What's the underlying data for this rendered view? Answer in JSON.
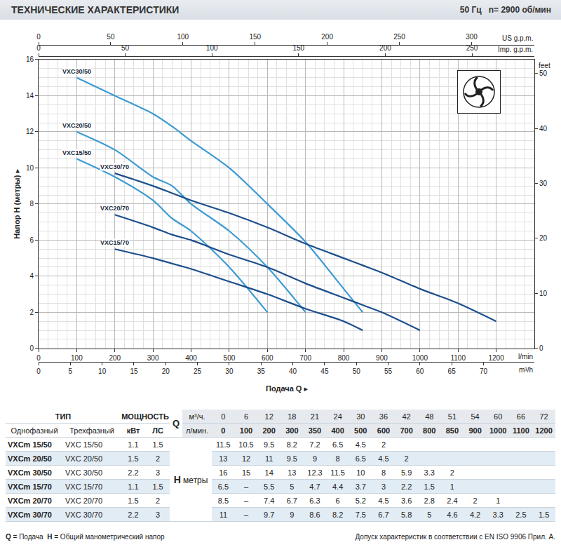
{
  "chart_data": {
    "type": "line",
    "title": "ТЕХНИЧЕСКИЕ ХАРАКТЕРИСТИКИ",
    "subtitle": "50 Гц   n= 2900 об/мин",
    "y_label": "Напор H (метры) ▸",
    "x_title": "Подача Q ▸",
    "x_unit": "l/min",
    "xlim": [
      0,
      1300
    ],
    "xticks": [
      0,
      100,
      200,
      300,
      400,
      500,
      600,
      700,
      800,
      900,
      1000,
      1100,
      1200
    ],
    "x2_unit": "m³/h",
    "x2lim": [
      0,
      78
    ],
    "x2ticks": [
      0,
      5,
      10,
      15,
      20,
      25,
      30,
      35,
      40,
      45,
      50,
      55,
      60,
      65,
      70
    ],
    "x3_unit": "US g.p.m.",
    "x3lim": [
      0,
      343.5
    ],
    "x3ticks": [
      0,
      50,
      100,
      150,
      200,
      250,
      300
    ],
    "x4_unit": "Imp. g.p.m.",
    "x4lim": [
      0,
      286
    ],
    "x4ticks": [
      0,
      50,
      100,
      150,
      200,
      250
    ],
    "ylim": [
      0,
      16
    ],
    "yticks": [
      0,
      2,
      4,
      6,
      8,
      10,
      12,
      14,
      16
    ],
    "y2_unit": "feet",
    "y2lim": [
      0,
      52.5
    ],
    "y2ticks": [
      0,
      10,
      20,
      30,
      40,
      50
    ],
    "grid": true,
    "line_style": "solid",
    "series": [
      {
        "name": "VXC30/50",
        "color": "#3d9bd3",
        "x": [
          100,
          200,
          300,
          350,
          400,
          500,
          600,
          700,
          800,
          850
        ],
        "values": [
          15,
          14,
          13,
          12.3,
          11.5,
          10,
          8,
          5.9,
          3.3,
          2
        ]
      },
      {
        "name": "VXC20/50",
        "color": "#3d9bd3",
        "x": [
          100,
          200,
          300,
          350,
          400,
          500,
          600,
          700
        ],
        "values": [
          12,
          11,
          9.5,
          9,
          8,
          6.5,
          4.5,
          2
        ]
      },
      {
        "name": "VXC15/50",
        "color": "#3d9bd3",
        "x": [
          100,
          200,
          300,
          350,
          400,
          500,
          600
        ],
        "values": [
          10.5,
          9.5,
          8.2,
          7.2,
          6.5,
          4.5,
          2
        ]
      },
      {
        "name": "VXC30/70",
        "color": "#1d4f8c",
        "x": [
          200,
          300,
          350,
          400,
          500,
          600,
          700,
          800,
          850,
          900,
          1000,
          1100,
          1200
        ],
        "values": [
          9.7,
          9,
          8.6,
          8.2,
          7.5,
          6.7,
          5.8,
          5,
          4.6,
          4.2,
          3.3,
          2.5,
          1.5
        ]
      },
      {
        "name": "VXC20/70",
        "color": "#1d4f8c",
        "x": [
          200,
          300,
          350,
          400,
          500,
          600,
          700,
          800,
          850,
          900,
          1000
        ],
        "values": [
          7.4,
          6.7,
          6.3,
          6,
          5.2,
          4.5,
          3.6,
          2.8,
          2.4,
          2,
          1
        ]
      },
      {
        "name": "VXC15/70",
        "color": "#1d4f8c",
        "x": [
          200,
          300,
          350,
          400,
          500,
          600,
          700,
          800,
          850
        ],
        "values": [
          5.5,
          5,
          4.7,
          4.4,
          3.7,
          3,
          2.2,
          1.5,
          1
        ]
      }
    ]
  },
  "table": {
    "type_head": "ТИП",
    "phase_heads": [
      "Однофазный",
      "Трехфазный"
    ],
    "power_head": "МОЩНОСТЬ",
    "power_units": [
      "кВт",
      "ЛС"
    ],
    "q_head": "Q",
    "q_units": [
      "м³/ч.",
      "л/мин."
    ],
    "q_m3h": [
      0,
      6,
      12,
      18,
      21,
      24,
      30,
      36,
      42,
      48,
      51,
      54,
      60,
      66,
      72
    ],
    "q_lmin": [
      0,
      100,
      200,
      300,
      350,
      400,
      500,
      600,
      700,
      800,
      850,
      900,
      1000,
      1100,
      1200
    ],
    "h_head": "H",
    "h_unit": "метры",
    "rows": [
      {
        "single": "VXCm 15/50",
        "three": "VXC 15/50",
        "kw": 1.1,
        "hp": 1.5,
        "h": [
          11.5,
          10.5,
          9.5,
          8.2,
          7.2,
          6.5,
          4.5,
          2
        ]
      },
      {
        "single": "VXCm 20/50",
        "three": "VXC 20/50",
        "kw": 1.5,
        "hp": 2,
        "h": [
          13,
          12,
          11,
          9.5,
          9,
          8,
          6.5,
          4.5,
          2
        ]
      },
      {
        "single": "VXCm 30/50",
        "three": "VXC 30/50",
        "kw": 2.2,
        "hp": 3,
        "h": [
          16,
          15,
          14,
          13,
          12.3,
          11.5,
          10,
          8,
          5.9,
          3.3,
          2
        ]
      },
      {
        "single": "VXCm 15/70",
        "three": "VXC 15/70",
        "kw": 1.1,
        "hp": 1.5,
        "h": [
          6.5,
          "–",
          5.5,
          5,
          4.7,
          4.4,
          3.7,
          3,
          2.2,
          1.5,
          1
        ]
      },
      {
        "single": "VXCm 20/70",
        "three": "VXC 20/70",
        "kw": 1.5,
        "hp": 2,
        "h": [
          8.5,
          "–",
          7.4,
          6.7,
          6.3,
          6,
          5.2,
          4.5,
          3.6,
          2.8,
          2.4,
          2,
          1
        ]
      },
      {
        "single": "VXCm 30/70",
        "three": "VXC 30/70",
        "kw": 2.2,
        "hp": 3,
        "h": [
          11,
          "–",
          9.7,
          9,
          8.6,
          8.2,
          7.5,
          6.7,
          5.8,
          5,
          4.6,
          4.2,
          3.3,
          2.5,
          1.5
        ]
      }
    ]
  },
  "footer": {
    "definitions": [
      {
        "key": "Q",
        "text": "= Подача"
      },
      {
        "key": "H",
        "text": "= Общий манометрический напор"
      }
    ],
    "note": "Допуск характеристик в соответствии с EN ISO 9906 Прил. А."
  }
}
